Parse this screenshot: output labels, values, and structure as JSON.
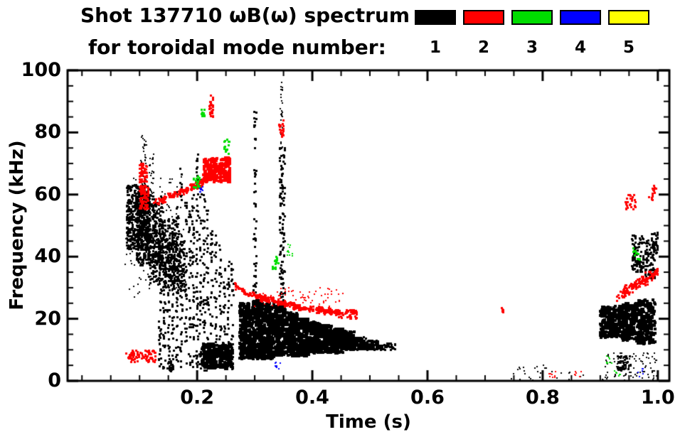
{
  "header": {
    "title": "Shot 137710 ωB(ω) spectrum",
    "subtitle": "for toroidal mode number:"
  },
  "chart_data": {
    "type": "scatter",
    "title": "Shot 137710 ωB(ω) spectrum",
    "subtitle": "for toroidal mode number:",
    "xlabel": "Time (s)",
    "ylabel": "Frequency (kHz)",
    "xlim": [
      -0.025,
      1.02
    ],
    "ylim": [
      0,
      100
    ],
    "xtick_values": [
      0.2,
      0.4,
      0.6,
      0.8,
      1.0
    ],
    "xtick_labels": [
      "0.2",
      "0.4",
      "0.6",
      "0.8",
      "1.0"
    ],
    "ytick_values": [
      0,
      20,
      40,
      60,
      80,
      100
    ],
    "ytick_labels": [
      "0",
      "20",
      "40",
      "60",
      "80",
      "100"
    ],
    "xminor": 0.05,
    "yminor": 5,
    "grid": false,
    "legend_position": "top-right",
    "legend": [
      {
        "label": "1",
        "color": "#000000"
      },
      {
        "label": "2",
        "color": "#ff0000"
      },
      {
        "label": "3",
        "color": "#00dd00"
      },
      {
        "label": "4",
        "color": "#0000ff"
      },
      {
        "label": "5",
        "color": "#ffff00"
      }
    ],
    "series": [
      {
        "name": "toroidal mode n=1",
        "label": "1",
        "color": "#000000",
        "blobs": [
          [
            0.078,
            0.118,
            42,
            63,
            420,
            1.6
          ],
          [
            0.095,
            0.142,
            37,
            60,
            380,
            1.6
          ],
          [
            0.115,
            0.168,
            31,
            52,
            300,
            1.5
          ],
          [
            0.138,
            0.178,
            29,
            45,
            130,
            1.4
          ],
          [
            0.075,
            0.182,
            27,
            66,
            130,
            1.0
          ],
          [
            0.103,
            0.112,
            58,
            79,
            40,
            1.2
          ],
          [
            0.117,
            0.125,
            55,
            73,
            28,
            1.1
          ],
          [
            0.133,
            0.137,
            4,
            52,
            45,
            1.3
          ],
          [
            0.141,
            0.145,
            4,
            38,
            30,
            1.3
          ],
          [
            0.148,
            0.152,
            4,
            46,
            35,
            1.3
          ],
          [
            0.156,
            0.16,
            4,
            52,
            35,
            1.3
          ],
          [
            0.163,
            0.167,
            4,
            62,
            45,
            1.3
          ],
          [
            0.17,
            0.174,
            4,
            70,
            45,
            1.3
          ],
          [
            0.178,
            0.182,
            4,
            58,
            40,
            1.3
          ],
          [
            0.185,
            0.189,
            4,
            55,
            35,
            1.3
          ],
          [
            0.191,
            0.195,
            4,
            64,
            45,
            1.3
          ],
          [
            0.198,
            0.202,
            4,
            75,
            55,
            1.3
          ],
          [
            0.204,
            0.208,
            4,
            65,
            40,
            1.3
          ],
          [
            0.21,
            0.214,
            3,
            60,
            40,
            1.3
          ],
          [
            0.216,
            0.22,
            3,
            55,
            35,
            1.3
          ],
          [
            0.223,
            0.227,
            3,
            50,
            32,
            1.3
          ],
          [
            0.23,
            0.234,
            3,
            48,
            30,
            1.3
          ],
          [
            0.238,
            0.242,
            3,
            45,
            28,
            1.3
          ],
          [
            0.245,
            0.249,
            3,
            40,
            25,
            1.3
          ],
          [
            0.252,
            0.256,
            3,
            42,
            25,
            1.3
          ],
          [
            0.259,
            0.263,
            3,
            38,
            22,
            1.3
          ],
          [
            0.208,
            0.262,
            4,
            12,
            260,
            1.9
          ],
          [
            0.152,
            0.158,
            3,
            7,
            20,
            1.4
          ],
          [
            0.274,
            0.294,
            7,
            25,
            260,
            2.1
          ],
          [
            0.295,
            0.314,
            7,
            26,
            280,
            2.1
          ],
          [
            0.315,
            0.334,
            7,
            25,
            280,
            2.1
          ],
          [
            0.335,
            0.354,
            8,
            24,
            260,
            2.1
          ],
          [
            0.355,
            0.374,
            8,
            22,
            240,
            2.0
          ],
          [
            0.375,
            0.394,
            8,
            20,
            220,
            2.0
          ],
          [
            0.395,
            0.414,
            9,
            19,
            200,
            1.9
          ],
          [
            0.415,
            0.434,
            9,
            18,
            185,
            1.9
          ],
          [
            0.435,
            0.454,
            9,
            17,
            170,
            1.8
          ],
          [
            0.455,
            0.474,
            10,
            16,
            150,
            1.8
          ],
          [
            0.475,
            0.494,
            10,
            14,
            120,
            1.7
          ],
          [
            0.495,
            0.515,
            10,
            13,
            95,
            1.6
          ],
          [
            0.515,
            0.545,
            10,
            12,
            40,
            1.4
          ],
          [
            0.298,
            0.303,
            25,
            87,
            50,
            1.3
          ],
          [
            0.343,
            0.353,
            22,
            75,
            110,
            1.5
          ],
          [
            0.345,
            0.349,
            75,
            97,
            28,
            1.2
          ],
          [
            0.9,
            0.937,
            14,
            24,
            230,
            2.0
          ],
          [
            0.937,
            0.962,
            13,
            25,
            210,
            2.0
          ],
          [
            0.962,
            0.996,
            12,
            26,
            230,
            2.0
          ],
          [
            0.955,
            0.975,
            35,
            47,
            95,
            1.6
          ],
          [
            0.975,
            0.996,
            33,
            46,
            85,
            1.6
          ],
          [
            0.988,
            1.0,
            40,
            48,
            40,
            1.4
          ],
          [
            0.9,
            1.0,
            0,
            9,
            90,
            1.2
          ],
          [
            0.93,
            0.952,
            3,
            8,
            45,
            1.3
          ],
          [
            0.74,
            0.885,
            0,
            5,
            28,
            1.1
          ]
        ],
        "tracks": []
      },
      {
        "name": "toroidal mode n=2",
        "label": "2",
        "color": "#ff0000",
        "blobs": [
          [
            0.086,
            0.128,
            6,
            10,
            65,
            1.5
          ],
          [
            0.076,
            0.09,
            7,
            9,
            14,
            1.3
          ],
          [
            0.1,
            0.116,
            55,
            63,
            85,
            1.6
          ],
          [
            0.1,
            0.113,
            64,
            70,
            55,
            1.5
          ],
          [
            0.21,
            0.257,
            64,
            72,
            190,
            1.8
          ],
          [
            0.221,
            0.228,
            84,
            92,
            26,
            1.3
          ],
          [
            0.342,
            0.351,
            78,
            84,
            22,
            1.3
          ],
          [
            0.445,
            0.478,
            20,
            23,
            45,
            1.4
          ],
          [
            0.3,
            0.455,
            24,
            30,
            70,
            1.1
          ],
          [
            0.727,
            0.736,
            22,
            24,
            6,
            1.3
          ],
          [
            0.81,
            0.826,
            1,
            3,
            8,
            1.2
          ],
          [
            0.853,
            0.868,
            1,
            3,
            6,
            1.2
          ],
          [
            0.944,
            0.962,
            55,
            60,
            26,
            1.4
          ],
          [
            0.984,
            0.998,
            58,
            63,
            16,
            1.3
          ]
        ],
        "tracks": [
          {
            "pts": [
              [
                0.125,
                57
              ],
              [
                0.15,
                59
              ],
              [
                0.175,
                61
              ],
              [
                0.196,
                62.5
              ],
              [
                0.212,
                64.5
              ],
              [
                0.228,
                67
              ],
              [
                0.243,
                69
              ],
              [
                0.257,
                71
              ]
            ],
            "jf": 1.4,
            "n": 230,
            "r": 1.5
          },
          {
            "pts": [
              [
                0.266,
                30.5
              ],
              [
                0.285,
                28.5
              ],
              [
                0.305,
                27
              ],
              [
                0.325,
                26
              ],
              [
                0.345,
                25.2
              ],
              [
                0.365,
                24.2
              ],
              [
                0.385,
                23.5
              ],
              [
                0.405,
                23
              ],
              [
                0.425,
                22.5
              ],
              [
                0.447,
                22
              ]
            ],
            "jf": 1.2,
            "n": 280,
            "r": 1.5
          },
          {
            "pts": [
              [
                0.928,
                27.5
              ],
              [
                0.945,
                29
              ],
              [
                0.962,
                30.5
              ],
              [
                0.978,
                32.5
              ],
              [
                0.992,
                34
              ],
              [
                1.0,
                35
              ]
            ],
            "jf": 2.2,
            "n": 130,
            "r": 1.6
          }
        ]
      },
      {
        "name": "toroidal mode n=3",
        "label": "3",
        "color": "#00dd00",
        "blobs": [
          [
            0.193,
            0.204,
            62,
            67,
            18,
            1.4
          ],
          [
            0.207,
            0.213,
            84,
            88,
            10,
            1.3
          ],
          [
            0.247,
            0.256,
            73,
            78,
            14,
            1.3
          ],
          [
            0.33,
            0.341,
            36,
            40,
            14,
            1.3
          ],
          [
            0.356,
            0.366,
            40,
            44,
            10,
            1.2
          ],
          [
            0.956,
            0.969,
            39,
            43,
            12,
            1.3
          ],
          [
            0.91,
            0.921,
            5,
            8,
            8,
            1.2
          ],
          [
            0.925,
            0.936,
            1,
            4,
            6,
            1.2
          ]
        ],
        "tracks": []
      },
      {
        "name": "toroidal mode n=4",
        "label": "4",
        "color": "#0000ff",
        "blobs": [
          [
            0.203,
            0.21,
            60,
            63,
            8,
            1.2
          ],
          [
            0.334,
            0.346,
            3,
            6,
            8,
            1.2
          ],
          [
            0.964,
            0.976,
            1,
            4,
            6,
            1.2
          ]
        ],
        "tracks": []
      },
      {
        "name": "toroidal mode n=5",
        "label": "5",
        "color": "#ffff00",
        "blobs": [],
        "tracks": []
      }
    ]
  }
}
